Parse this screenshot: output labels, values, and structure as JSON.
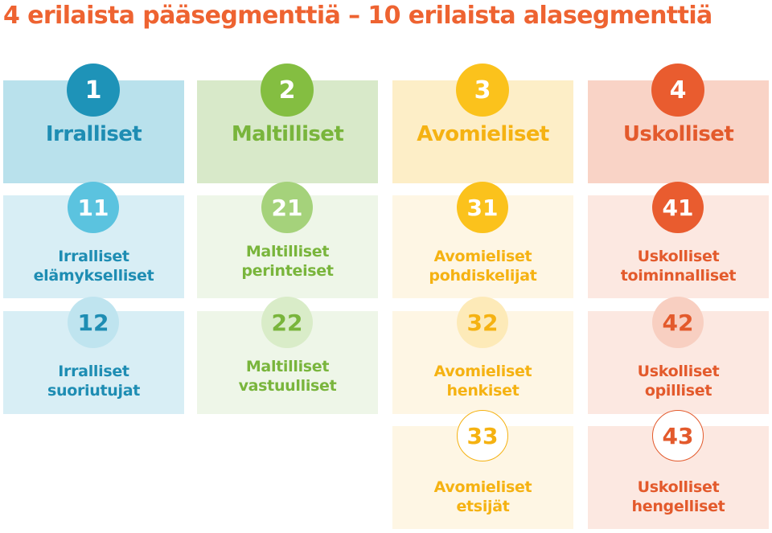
{
  "title": "4 erilaista pääsegmenttiä – 10 erilaista alasegmenttiä",
  "colors": {
    "title": "#ee6331",
    "blue": "#1e93b8",
    "green": "#84be41",
    "yellow": "#fbc21c",
    "red": "#e95c2f"
  },
  "segments": [
    {
      "number": "1",
      "label": "Irralliset",
      "subsegments": [
        {
          "number": "11",
          "line1": "Irralliset",
          "line2": "elämykselliset"
        },
        {
          "number": "12",
          "line1": "Irralliset",
          "line2": "suoriutujat"
        }
      ]
    },
    {
      "number": "2",
      "label": "Maltilliset",
      "subsegments": [
        {
          "number": "21",
          "line1": "Maltilliset",
          "line2": "perinteiset"
        },
        {
          "number": "22",
          "line1": "Maltilliset",
          "line2": "vastuulliset"
        }
      ]
    },
    {
      "number": "3",
      "label": "Avomieliset",
      "subsegments": [
        {
          "number": "31",
          "line1": "Avomieliset",
          "line2": "pohdiskelijat"
        },
        {
          "number": "32",
          "line1": "Avomieliset",
          "line2": "henkiset"
        },
        {
          "number": "33",
          "line1": "Avomieliset",
          "line2": "etsijät"
        }
      ]
    },
    {
      "number": "4",
      "label": "Uskolliset",
      "subsegments": [
        {
          "number": "41",
          "line1": "Uskolliset",
          "line2": "toiminnalliset"
        },
        {
          "number": "42",
          "line1": "Uskolliset",
          "line2": "opilliset"
        },
        {
          "number": "43",
          "line1": "Uskolliset",
          "line2": "hengelliset"
        }
      ]
    }
  ]
}
